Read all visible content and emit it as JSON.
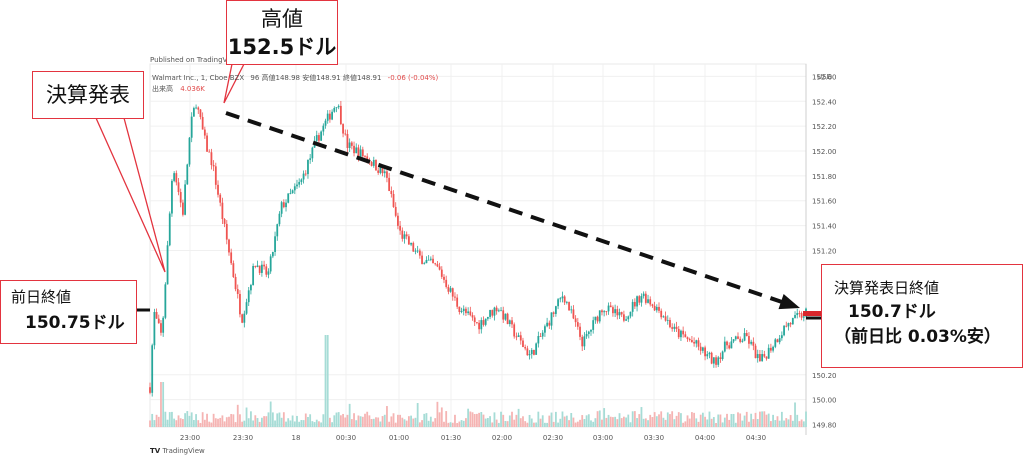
{
  "header": {
    "published": "Published on TradingView",
    "symbol": "Walmart Inc., 1, Cboe BZX",
    "ohlc_fragment": "96  高値148.98  安値148.91  終値148.91",
    "change": "-0.06 (-0.04%)",
    "volume_label": "出来高",
    "volume_value": "4.036K",
    "currency": "USD",
    "footer_brand": "TradingView"
  },
  "callouts": {
    "high": {
      "title": "高値",
      "value": "152.5ドル"
    },
    "earnings": {
      "title": "決算発表"
    },
    "prev_close": {
      "title": "前日終値",
      "value": "150.75ドル"
    },
    "day_close": {
      "title": "決算発表日終値",
      "value": "150.7ドル",
      "diff": "（前日比 0.03%安）"
    }
  },
  "chart_data": {
    "type": "candlestick",
    "ylim": [
      149.8,
      152.7
    ],
    "y_ticks": [
      "152.60",
      "152.40",
      "152.20",
      "152.00",
      "151.80",
      "151.60",
      "151.40",
      "151.20",
      "150.20",
      "150.00",
      "149.80"
    ],
    "x_ticks": [
      "23:00",
      "23:30",
      "18",
      "00:30",
      "01:00",
      "01:30",
      "02:00",
      "02:30",
      "03:00",
      "03:30",
      "04:00",
      "04:30"
    ],
    "price_path": [
      [
        0,
        150.1
      ],
      [
        0.006,
        150.7
      ],
      [
        0.018,
        150.5
      ],
      [
        0.035,
        151.9
      ],
      [
        0.05,
        151.5
      ],
      [
        0.062,
        152.2
      ],
      [
        0.07,
        152.4
      ],
      [
        0.085,
        152.05
      ],
      [
        0.095,
        151.9
      ],
      [
        0.12,
        151.2
      ],
      [
        0.14,
        150.65
      ],
      [
        0.16,
        151.1
      ],
      [
        0.18,
        151.0
      ],
      [
        0.2,
        151.55
      ],
      [
        0.23,
        151.75
      ],
      [
        0.255,
        152.1
      ],
      [
        0.285,
        152.4
      ],
      [
        0.3,
        152.05
      ],
      [
        0.33,
        151.95
      ],
      [
        0.36,
        151.8
      ],
      [
        0.38,
        151.35
      ],
      [
        0.41,
        151.15
      ],
      [
        0.44,
        151.05
      ],
      [
        0.47,
        150.75
      ],
      [
        0.5,
        150.6
      ],
      [
        0.53,
        150.75
      ],
      [
        0.56,
        150.5
      ],
      [
        0.58,
        150.35
      ],
      [
        0.6,
        150.55
      ],
      [
        0.63,
        150.85
      ],
      [
        0.66,
        150.45
      ],
      [
        0.69,
        150.75
      ],
      [
        0.72,
        150.65
      ],
      [
        0.75,
        150.85
      ],
      [
        0.78,
        150.7
      ],
      [
        0.8,
        150.55
      ],
      [
        0.83,
        150.45
      ],
      [
        0.86,
        150.3
      ],
      [
        0.88,
        150.45
      ],
      [
        0.91,
        150.5
      ],
      [
        0.93,
        150.3
      ],
      [
        0.95,
        150.45
      ],
      [
        0.97,
        150.6
      ],
      [
        1.0,
        150.7
      ]
    ],
    "annotations": {
      "trend_line": {
        "from": [
          0.11,
          152.4
        ],
        "to": [
          1.0,
          150.85
        ]
      },
      "prev_close_level": 150.75,
      "day_close_level": 150.7
    }
  }
}
